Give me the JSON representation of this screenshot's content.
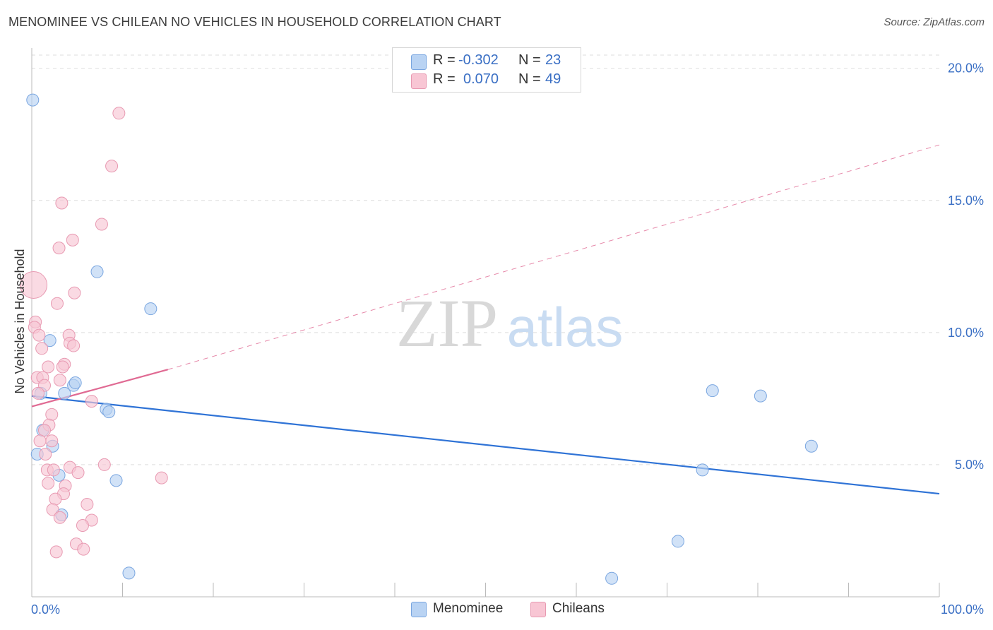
{
  "title": "MENOMINEE VS CHILEAN NO VEHICLES IN HOUSEHOLD CORRELATION CHART",
  "source": "Source: ZipAtlas.com",
  "watermark": {
    "zip": "ZIP",
    "atlas": "atlas"
  },
  "legend": {
    "rows": [
      {
        "r_label": "R =",
        "r_value": "-0.302",
        "n_label": "N =",
        "n_value": "23"
      },
      {
        "r_label": "R =",
        "r_value": "0.070",
        "n_label": "N =",
        "n_value": "49"
      }
    ]
  },
  "bottom_legend": {
    "series1": "Menominee",
    "series2": "Chileans"
  },
  "colors": {
    "blue_fill": "#b9d3f3",
    "blue_stroke": "#7aa6e0",
    "blue_line": "#2f73d6",
    "pink_fill": "#f8c6d4",
    "pink_stroke": "#e89ab2",
    "pink_line": "#e06a93",
    "grid": "#dddddd",
    "axis_text": "#3a6fc4"
  },
  "chart_data": {
    "type": "scatter",
    "title": "MENOMINEE VS CHILEAN NO VEHICLES IN HOUSEHOLD CORRELATION CHART",
    "xlabel": "",
    "ylabel": "No Vehicles in Household",
    "xlim": [
      0,
      100
    ],
    "ylim": [
      0,
      20.5
    ],
    "x_tick_labels": [
      "0.0%",
      "100.0%"
    ],
    "y_ticks": [
      5,
      10,
      15,
      20
    ],
    "y_tick_labels": [
      "5.0%",
      "10.0%",
      "15.0%",
      "20.0%"
    ],
    "series": [
      {
        "name": "Menominee",
        "R": -0.302,
        "N": 23,
        "trend": {
          "x0": 0,
          "y0": 7.6,
          "x1": 100,
          "y1": 3.9
        },
        "points": [
          {
            "x": 0.1,
            "y": 18.8
          },
          {
            "x": 7.2,
            "y": 12.3
          },
          {
            "x": 13.1,
            "y": 10.9
          },
          {
            "x": 2.0,
            "y": 9.7
          },
          {
            "x": 4.6,
            "y": 8.0
          },
          {
            "x": 4.8,
            "y": 8.1
          },
          {
            "x": 1.0,
            "y": 7.7
          },
          {
            "x": 3.6,
            "y": 7.7
          },
          {
            "x": 8.2,
            "y": 7.1
          },
          {
            "x": 8.5,
            "y": 7.0
          },
          {
            "x": 1.2,
            "y": 6.3
          },
          {
            "x": 2.3,
            "y": 5.7
          },
          {
            "x": 0.6,
            "y": 5.4
          },
          {
            "x": 3.0,
            "y": 4.6
          },
          {
            "x": 9.3,
            "y": 4.4
          },
          {
            "x": 3.3,
            "y": 3.1
          },
          {
            "x": 10.7,
            "y": 0.9
          },
          {
            "x": 75.0,
            "y": 7.8
          },
          {
            "x": 80.3,
            "y": 7.6
          },
          {
            "x": 85.9,
            "y": 5.7
          },
          {
            "x": 73.9,
            "y": 4.8
          },
          {
            "x": 71.2,
            "y": 2.1
          },
          {
            "x": 63.9,
            "y": 0.7
          }
        ]
      },
      {
        "name": "Chileans",
        "R": 0.07,
        "N": 49,
        "trend": {
          "x0": 0,
          "y0": 7.2,
          "x1": 15,
          "y1": 8.6,
          "extended_x1": 100,
          "extended_y1": 17.1
        },
        "points": [
          {
            "x": 9.6,
            "y": 18.3
          },
          {
            "x": 8.8,
            "y": 16.3
          },
          {
            "x": 3.3,
            "y": 14.9
          },
          {
            "x": 7.7,
            "y": 14.1
          },
          {
            "x": 4.5,
            "y": 13.5
          },
          {
            "x": 3.0,
            "y": 13.2
          },
          {
            "x": 0.2,
            "y": 11.8
          },
          {
            "x": 4.7,
            "y": 11.5
          },
          {
            "x": 2.8,
            "y": 11.1
          },
          {
            "x": 0.4,
            "y": 10.4
          },
          {
            "x": 0.3,
            "y": 10.2
          },
          {
            "x": 0.8,
            "y": 9.9
          },
          {
            "x": 4.1,
            "y": 9.9
          },
          {
            "x": 4.2,
            "y": 9.6
          },
          {
            "x": 4.6,
            "y": 9.5
          },
          {
            "x": 1.1,
            "y": 9.4
          },
          {
            "x": 3.6,
            "y": 8.8
          },
          {
            "x": 3.4,
            "y": 8.7
          },
          {
            "x": 1.8,
            "y": 8.7
          },
          {
            "x": 0.6,
            "y": 8.3
          },
          {
            "x": 1.2,
            "y": 8.3
          },
          {
            "x": 3.1,
            "y": 8.2
          },
          {
            "x": 1.4,
            "y": 8.0
          },
          {
            "x": 0.7,
            "y": 7.7
          },
          {
            "x": 6.6,
            "y": 7.4
          },
          {
            "x": 2.2,
            "y": 6.9
          },
          {
            "x": 1.9,
            "y": 6.5
          },
          {
            "x": 1.4,
            "y": 6.3
          },
          {
            "x": 2.2,
            "y": 5.9
          },
          {
            "x": 0.9,
            "y": 5.9
          },
          {
            "x": 1.5,
            "y": 5.4
          },
          {
            "x": 8.0,
            "y": 5.0
          },
          {
            "x": 4.2,
            "y": 4.9
          },
          {
            "x": 1.7,
            "y": 4.8
          },
          {
            "x": 2.4,
            "y": 4.8
          },
          {
            "x": 5.1,
            "y": 4.7
          },
          {
            "x": 14.3,
            "y": 4.5
          },
          {
            "x": 1.8,
            "y": 4.3
          },
          {
            "x": 3.7,
            "y": 4.2
          },
          {
            "x": 3.5,
            "y": 3.9
          },
          {
            "x": 2.6,
            "y": 3.7
          },
          {
            "x": 6.1,
            "y": 3.5
          },
          {
            "x": 2.3,
            "y": 3.3
          },
          {
            "x": 3.1,
            "y": 3.0
          },
          {
            "x": 6.6,
            "y": 2.9
          },
          {
            "x": 5.6,
            "y": 2.7
          },
          {
            "x": 4.9,
            "y": 2.0
          },
          {
            "x": 5.7,
            "y": 1.8
          },
          {
            "x": 2.7,
            "y": 1.7
          }
        ]
      }
    ]
  }
}
